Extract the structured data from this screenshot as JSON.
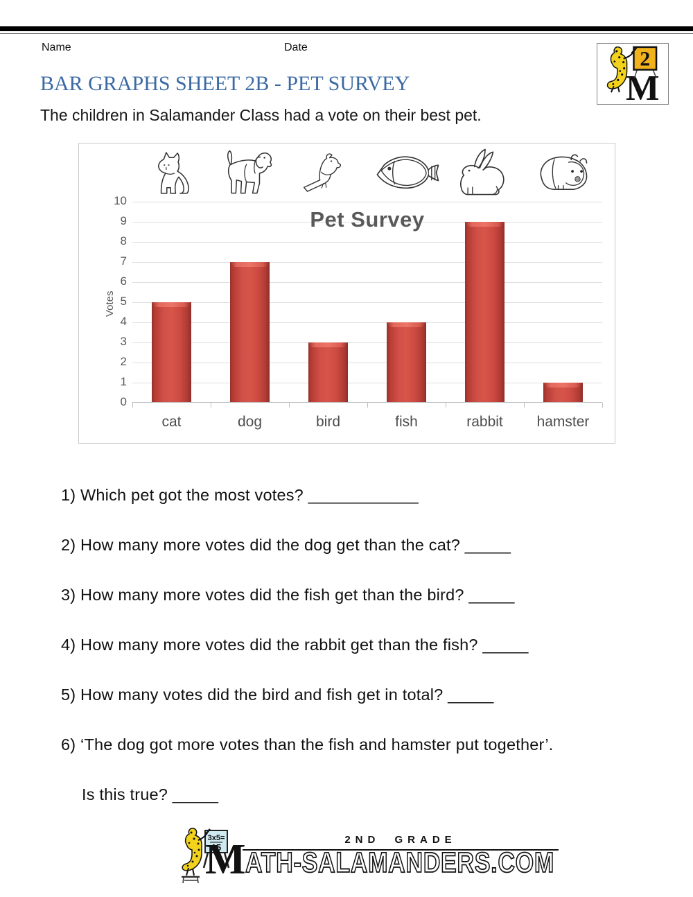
{
  "header": {
    "name_label": "Name",
    "date_label": "Date",
    "title": "BAR GRAPHS SHEET 2B - PET SURVEY",
    "title_color": "#3b6aa4",
    "subtitle": "The children in Salamander Class had a vote on their best pet."
  },
  "top_logo": {
    "grade_number": "2",
    "letter": "M"
  },
  "chart_data": {
    "type": "bar",
    "title": "Pet Survey",
    "ylabel": "Votes",
    "categories": [
      "cat",
      "dog",
      "bird",
      "fish",
      "rabbit",
      "hamster"
    ],
    "values": [
      5,
      7,
      3,
      4,
      9,
      1
    ],
    "ylim": [
      0,
      10
    ],
    "ytick_step": 1,
    "grid": true,
    "legend_position": "none",
    "bar_color": "#c64139",
    "bar_edge_color": "#9d342e",
    "bar_highlight_color": "#e2655a",
    "title_color": "#595959",
    "icons": [
      "cat-icon",
      "dog-icon",
      "bird-icon",
      "fish-icon",
      "rabbit-icon",
      "hamster-icon"
    ]
  },
  "questions": [
    {
      "text": "1) Which pet got the most votes? ____________"
    },
    {
      "text": "2) How many more votes did the dog get than the cat? _____"
    },
    {
      "text": "3) How many more votes did the fish get than the bird? _____"
    },
    {
      "text": "4) How many more votes did the rabbit get than the fish? _____"
    },
    {
      "text": "5) How many votes did the bird and fish get in total? _____"
    },
    {
      "text": "6) ‘The dog got more votes than the fish and hamster put together’."
    },
    {
      "text": "Is this true? _____"
    }
  ],
  "footer": {
    "grade_text": "2ND GRADE",
    "brand_initial": "M",
    "brand_rest": "ATH-SALAMANDERS.COM",
    "board_line1": "3x5=",
    "board_line2": "15"
  }
}
